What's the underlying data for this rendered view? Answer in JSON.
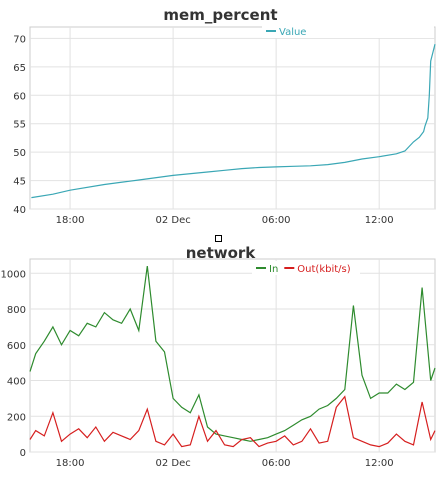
{
  "chart_data": [
    {
      "type": "line",
      "title": "mem_percent",
      "series": [
        {
          "name": "Value",
          "color": "#3aa7b5",
          "x": [
            "2022-12-01 15:45",
            "2022-12-01 17:00",
            "2022-12-01 18:00",
            "2022-12-01 20:00",
            "2022-12-01 22:00",
            "2022-12-02 00:00",
            "2022-12-02 02:00",
            "2022-12-02 03:00",
            "2022-12-02 04:00",
            "2022-12-02 05:00",
            "2022-12-02 06:00",
            "2022-12-02 07:00",
            "2022-12-02 08:00",
            "2022-12-02 09:00",
            "2022-12-02 10:00",
            "2022-12-02 11:00",
            "2022-12-02 12:00",
            "2022-12-02 13:00",
            "2022-12-02 13:30",
            "2022-12-02 14:00",
            "2022-12-02 14:20",
            "2022-12-02 14:35",
            "2022-12-02 14:40",
            "2022-12-02 14:50",
            "2022-12-02 14:55",
            "2022-12-02 15:00",
            "2022-12-02 15:15"
          ],
          "values": [
            42.0,
            42.6,
            43.3,
            44.3,
            45.1,
            45.9,
            46.5,
            46.8,
            47.1,
            47.3,
            47.4,
            47.5,
            47.6,
            47.8,
            48.2,
            48.8,
            49.2,
            49.7,
            50.2,
            51.8,
            52.6,
            53.6,
            54.6,
            56,
            60,
            66,
            69
          ]
        }
      ],
      "ylim": [
        40,
        72
      ],
      "yticks": [
        "40",
        "45",
        "50",
        "55",
        "60",
        "65",
        "70"
      ],
      "xlim": [
        "2022-12-01 15:40",
        "2022-12-02 15:15"
      ],
      "xticks": [
        {
          "x": "2022-12-01 18:00",
          "label": "18:00"
        },
        {
          "x": "2022-12-02 00:00",
          "label": "02 Dec"
        },
        {
          "x": "2022-12-02 06:00",
          "label": "06:00"
        },
        {
          "x": "2022-12-02 12:00",
          "label": "12:00"
        }
      ],
      "grid": true,
      "legend_position": "top-right"
    },
    {
      "type": "line",
      "title": "network",
      "series": [
        {
          "name": "In",
          "color": "#2e8b2e",
          "x": [
            "2022-12-01 15:40",
            "2022-12-01 16:00",
            "2022-12-01 16:30",
            "2022-12-01 17:00",
            "2022-12-01 17:30",
            "2022-12-01 18:00",
            "2022-12-01 18:30",
            "2022-12-01 19:00",
            "2022-12-01 19:30",
            "2022-12-01 20:00",
            "2022-12-01 20:30",
            "2022-12-01 21:00",
            "2022-12-01 21:30",
            "2022-12-01 22:00",
            "2022-12-01 22:30",
            "2022-12-01 23:00",
            "2022-12-01 23:30",
            "2022-12-02 00:00",
            "2022-12-02 00:30",
            "2022-12-02 01:00",
            "2022-12-02 01:30",
            "2022-12-02 02:00",
            "2022-12-02 02:30",
            "2022-12-02 03:00",
            "2022-12-02 03:30",
            "2022-12-02 04:00",
            "2022-12-02 04:30",
            "2022-12-02 05:00",
            "2022-12-02 05:30",
            "2022-12-02 06:00",
            "2022-12-02 06:30",
            "2022-12-02 07:00",
            "2022-12-02 07:30",
            "2022-12-02 08:00",
            "2022-12-02 08:30",
            "2022-12-02 09:00",
            "2022-12-02 09:30",
            "2022-12-02 10:00",
            "2022-12-02 10:30",
            "2022-12-02 11:00",
            "2022-12-02 11:30",
            "2022-12-02 12:00",
            "2022-12-02 12:30",
            "2022-12-02 13:00",
            "2022-12-02 13:30",
            "2022-12-02 14:00",
            "2022-12-02 14:30",
            "2022-12-02 15:00",
            "2022-12-02 15:15"
          ],
          "values": [
            450,
            550,
            620,
            700,
            600,
            680,
            650,
            720,
            700,
            780,
            740,
            720,
            800,
            680,
            1040,
            620,
            560,
            300,
            250,
            220,
            320,
            140,
            100,
            90,
            80,
            70,
            60,
            70,
            80,
            100,
            120,
            150,
            180,
            200,
            240,
            260,
            300,
            350,
            820,
            430,
            300,
            330,
            330,
            380,
            350,
            390,
            920,
            400,
            470
          ]
        },
        {
          "name": "Out(kbit/s)",
          "color": "#d61f1f",
          "x": [
            "2022-12-01 15:40",
            "2022-12-01 16:00",
            "2022-12-01 16:30",
            "2022-12-01 17:00",
            "2022-12-01 17:30",
            "2022-12-01 18:00",
            "2022-12-01 18:30",
            "2022-12-01 19:00",
            "2022-12-01 19:30",
            "2022-12-01 20:00",
            "2022-12-01 20:30",
            "2022-12-01 21:00",
            "2022-12-01 21:30",
            "2022-12-01 22:00",
            "2022-12-01 22:30",
            "2022-12-01 23:00",
            "2022-12-01 23:30",
            "2022-12-02 00:00",
            "2022-12-02 00:30",
            "2022-12-02 01:00",
            "2022-12-02 01:30",
            "2022-12-02 02:00",
            "2022-12-02 02:30",
            "2022-12-02 03:00",
            "2022-12-02 03:30",
            "2022-12-02 04:00",
            "2022-12-02 04:30",
            "2022-12-02 05:00",
            "2022-12-02 05:30",
            "2022-12-02 06:00",
            "2022-12-02 06:30",
            "2022-12-02 07:00",
            "2022-12-02 07:30",
            "2022-12-02 08:00",
            "2022-12-02 08:30",
            "2022-12-02 09:00",
            "2022-12-02 09:30",
            "2022-12-02 10:00",
            "2022-12-02 10:30",
            "2022-12-02 11:00",
            "2022-12-02 11:30",
            "2022-12-02 12:00",
            "2022-12-02 12:30",
            "2022-12-02 13:00",
            "2022-12-02 13:30",
            "2022-12-02 14:00",
            "2022-12-02 14:30",
            "2022-12-02 15:00",
            "2022-12-02 15:15"
          ],
          "values": [
            70,
            120,
            90,
            220,
            60,
            100,
            130,
            80,
            140,
            60,
            110,
            90,
            70,
            120,
            240,
            60,
            40,
            100,
            30,
            40,
            200,
            60,
            120,
            40,
            30,
            70,
            80,
            30,
            50,
            60,
            90,
            40,
            60,
            130,
            50,
            60,
            250,
            310,
            80,
            60,
            40,
            30,
            50,
            100,
            60,
            40,
            280,
            70,
            120
          ]
        }
      ],
      "ylim": [
        0,
        1080
      ],
      "yticks": [
        "0",
        "200",
        "400",
        "600",
        "800",
        "1000"
      ],
      "xlim": [
        "2022-12-01 15:40",
        "2022-12-02 15:15"
      ],
      "xticks": [
        {
          "x": "2022-12-01 18:00",
          "label": "18:00"
        },
        {
          "x": "2022-12-02 00:00",
          "label": "02 Dec"
        },
        {
          "x": "2022-12-02 06:00",
          "label": "06:00"
        },
        {
          "x": "2022-12-02 12:00",
          "label": "12:00"
        }
      ],
      "grid": true,
      "legend_position": "top-right"
    }
  ]
}
